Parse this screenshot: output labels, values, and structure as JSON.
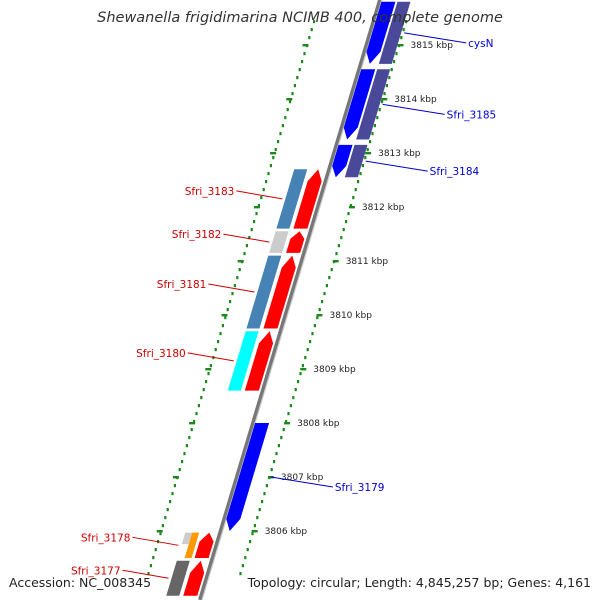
{
  "title": "Shewanella frigidimarina NCIMB 400, complete genome",
  "footer": {
    "accession": "Accession: NC_008345",
    "topology": "Topology: circular; Length: 4,845,257 bp; Genes: 4,161"
  },
  "colors": {
    "backbone": "#888888",
    "dots": "#1a8a1a",
    "forward_label": "#0000cc",
    "reverse_label": "#cc0000",
    "cds_forward": "#0000ff",
    "cds_reverse": "#ff0000",
    "cog_purple": "#4a4898",
    "cog_steelblue": "#4682b4",
    "cog_cyan": "#00ffff",
    "cog_lightgray": "#cccccc",
    "cog_orange": "#ff9900",
    "cog_darkgray": "#666666"
  },
  "ticks": [
    {
      "label": "3815 kbp",
      "kbp": 3815
    },
    {
      "label": "3814 kbp",
      "kbp": 3814
    },
    {
      "label": "3813 kbp",
      "kbp": 3813
    },
    {
      "label": "3812 kbp",
      "kbp": 3812
    },
    {
      "label": "3811 kbp",
      "kbp": 3811
    },
    {
      "label": "3810 kbp",
      "kbp": 3810
    },
    {
      "label": "3809 kbp",
      "kbp": 3809
    },
    {
      "label": "3808 kbp",
      "kbp": 3808
    },
    {
      "label": "3807 kbp",
      "kbp": 3807
    },
    {
      "label": "3806 kbp",
      "kbp": 3806
    }
  ],
  "genes": [
    {
      "label": "cysN",
      "strand": "forward",
      "start_kbp": 3814.65,
      "end_kbp": 3815.8,
      "cog": "cog_purple"
    },
    {
      "label": "Sfri_3185",
      "strand": "forward",
      "start_kbp": 3813.25,
      "end_kbp": 3814.55,
      "cog": "cog_purple"
    },
    {
      "label": "Sfri_3184",
      "strand": "forward",
      "start_kbp": 3812.55,
      "end_kbp": 3813.15,
      "cog": "cog_purple"
    },
    {
      "label": "Sfri_3183",
      "strand": "reverse",
      "start_kbp": 3811.6,
      "end_kbp": 3812.7,
      "cog": "cog_steelblue"
    },
    {
      "label": "Sfri_3182",
      "strand": "reverse",
      "start_kbp": 3811.15,
      "end_kbp": 3811.55,
      "cog": "cog_lightgray"
    },
    {
      "label": "Sfri_3181",
      "strand": "reverse",
      "start_kbp": 3809.75,
      "end_kbp": 3811.1,
      "cog": "cog_steelblue"
    },
    {
      "label": "Sfri_3180",
      "strand": "reverse",
      "start_kbp": 3808.6,
      "end_kbp": 3809.7,
      "cog": "cog_cyan"
    },
    {
      "label": "Sfri_3179",
      "strand": "forward",
      "start_kbp": 3806.0,
      "end_kbp": 3808.0,
      "cog": null
    },
    {
      "label": "Sfri_3178",
      "strand": "reverse",
      "start_kbp": 3805.5,
      "end_kbp": 3805.97,
      "cog": "cog_orange",
      "cog2": "cog_lightgray"
    },
    {
      "label": "Sfri_3177",
      "strand": "reverse",
      "start_kbp": 3804.8,
      "end_kbp": 3805.45,
      "cog": "cog_darkgray"
    }
  ]
}
